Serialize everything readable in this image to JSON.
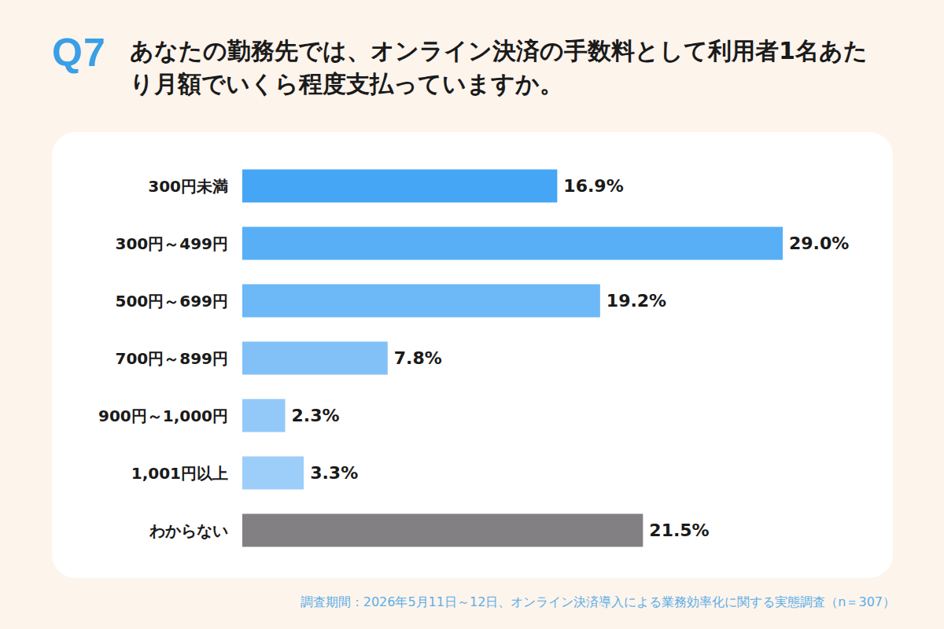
{
  "chart_data": {
    "type": "bar",
    "orientation": "horizontal",
    "title": "Q7",
    "subtitle": "あなたの勤務先では、オンライン決済の手数料として利用者1名あたり月額でいくら程度支払っていますか。",
    "source": "調査期間：2026年5月11日～12日、オンライン決済導入による業務効率化に関する実態調査（n＝307）",
    "categories": [
      "300円未満",
      "300円～499円",
      "500円～699円",
      "700円～899円",
      "900円～1,000円",
      "1,001円以上",
      "わからない"
    ],
    "values": [
      16.9,
      29.0,
      19.2,
      7.8,
      2.3,
      3.3,
      21.5
    ],
    "value_labels": [
      "16.9%",
      "29.0%",
      "19.2%",
      "7.8%",
      "2.3%",
      "3.3%",
      "21.5%"
    ],
    "colors": [
      "#44a6f4",
      "#58aff6",
      "#6db8f7",
      "#81c1f8",
      "#93c9f9",
      "#9ccef9",
      "#828083"
    ],
    "xlim": [
      0,
      29
    ],
    "data_labels": true,
    "tick_labels": "y",
    "grid": false
  }
}
